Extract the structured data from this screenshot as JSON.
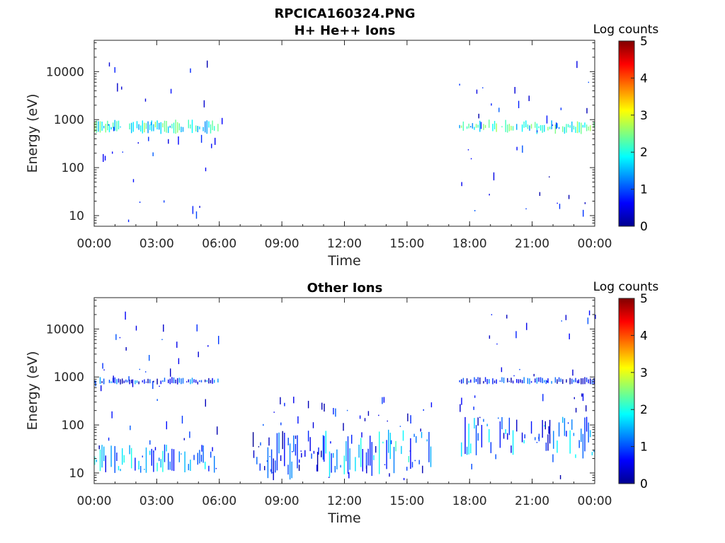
{
  "figure": {
    "title": "RPCICA160324.PNG"
  },
  "chart_data": [
    {
      "type": "heatmap",
      "title": "H+ He++ Ions",
      "xlabel": "Time",
      "ylabel": "Energy (eV)",
      "x_ticks": [
        "00:00",
        "03:00",
        "06:00",
        "09:00",
        "12:00",
        "15:00",
        "18:00",
        "21:00",
        "00:00"
      ],
      "x_range_hours": [
        0,
        24
      ],
      "y_scale": "log",
      "y_range": [
        6,
        45000
      ],
      "y_ticks": [
        10,
        100,
        1000,
        10000
      ],
      "y_tick_labels": [
        "10",
        "100",
        "1000",
        "10000"
      ],
      "colorbar": {
        "label": "Log counts",
        "min": 0,
        "max": 5,
        "ticks": [
          "0",
          "1",
          "2",
          "3",
          "4",
          "5"
        ],
        "colormap": "jet"
      },
      "regions": [
        {
          "t_start": 0.0,
          "t_end": 6.1,
          "band_center_eV": 700,
          "band_low_eV": 500,
          "band_high_eV": 1000,
          "band_level": 2.0,
          "scatter_level": 0.8
        },
        {
          "t_start": 17.5,
          "t_end": 24.0,
          "band_center_eV": 700,
          "band_low_eV": 500,
          "band_high_eV": 1000,
          "band_level": 2.0,
          "scatter_level": 0.8
        }
      ]
    },
    {
      "type": "heatmap",
      "title": "Other Ions",
      "xlabel": "Time",
      "ylabel": "Energy (eV)",
      "x_ticks": [
        "00:00",
        "03:00",
        "06:00",
        "09:00",
        "12:00",
        "15:00",
        "18:00",
        "21:00",
        "00:00"
      ],
      "x_range_hours": [
        0,
        24
      ],
      "y_scale": "log",
      "y_range": [
        6,
        45000
      ],
      "y_ticks": [
        10,
        100,
        1000,
        10000
      ],
      "y_tick_labels": [
        "10",
        "100",
        "1000",
        "10000"
      ],
      "colorbar": {
        "label": "Log counts",
        "min": 0,
        "max": 5,
        "ticks": [
          "0",
          "1",
          "2",
          "3",
          "4",
          "5"
        ],
        "colormap": "jet"
      },
      "regions": [
        {
          "t_start": 0.0,
          "t_end": 6.0,
          "band_center_eV": 800,
          "band_low_eV": 700,
          "band_high_eV": 1000,
          "band_level": 0.8,
          "low_band_low_eV": 10,
          "low_band_high_eV": 40,
          "low_band_level": 1.3
        },
        {
          "t_start": 7.6,
          "t_end": 11.0,
          "low_band_low_eV": 7,
          "low_band_high_eV": 80,
          "low_band_level": 0.6
        },
        {
          "t_start": 11.0,
          "t_end": 16.2,
          "low_band_low_eV": 8,
          "low_band_high_eV": 80,
          "low_band_level": 1.4
        },
        {
          "t_start": 17.5,
          "t_end": 24.0,
          "band_center_eV": 800,
          "band_low_eV": 700,
          "band_high_eV": 1000,
          "band_level": 0.7,
          "low_band_low_eV": 20,
          "low_band_high_eV": 150,
          "low_band_level": 1.1
        }
      ]
    }
  ]
}
